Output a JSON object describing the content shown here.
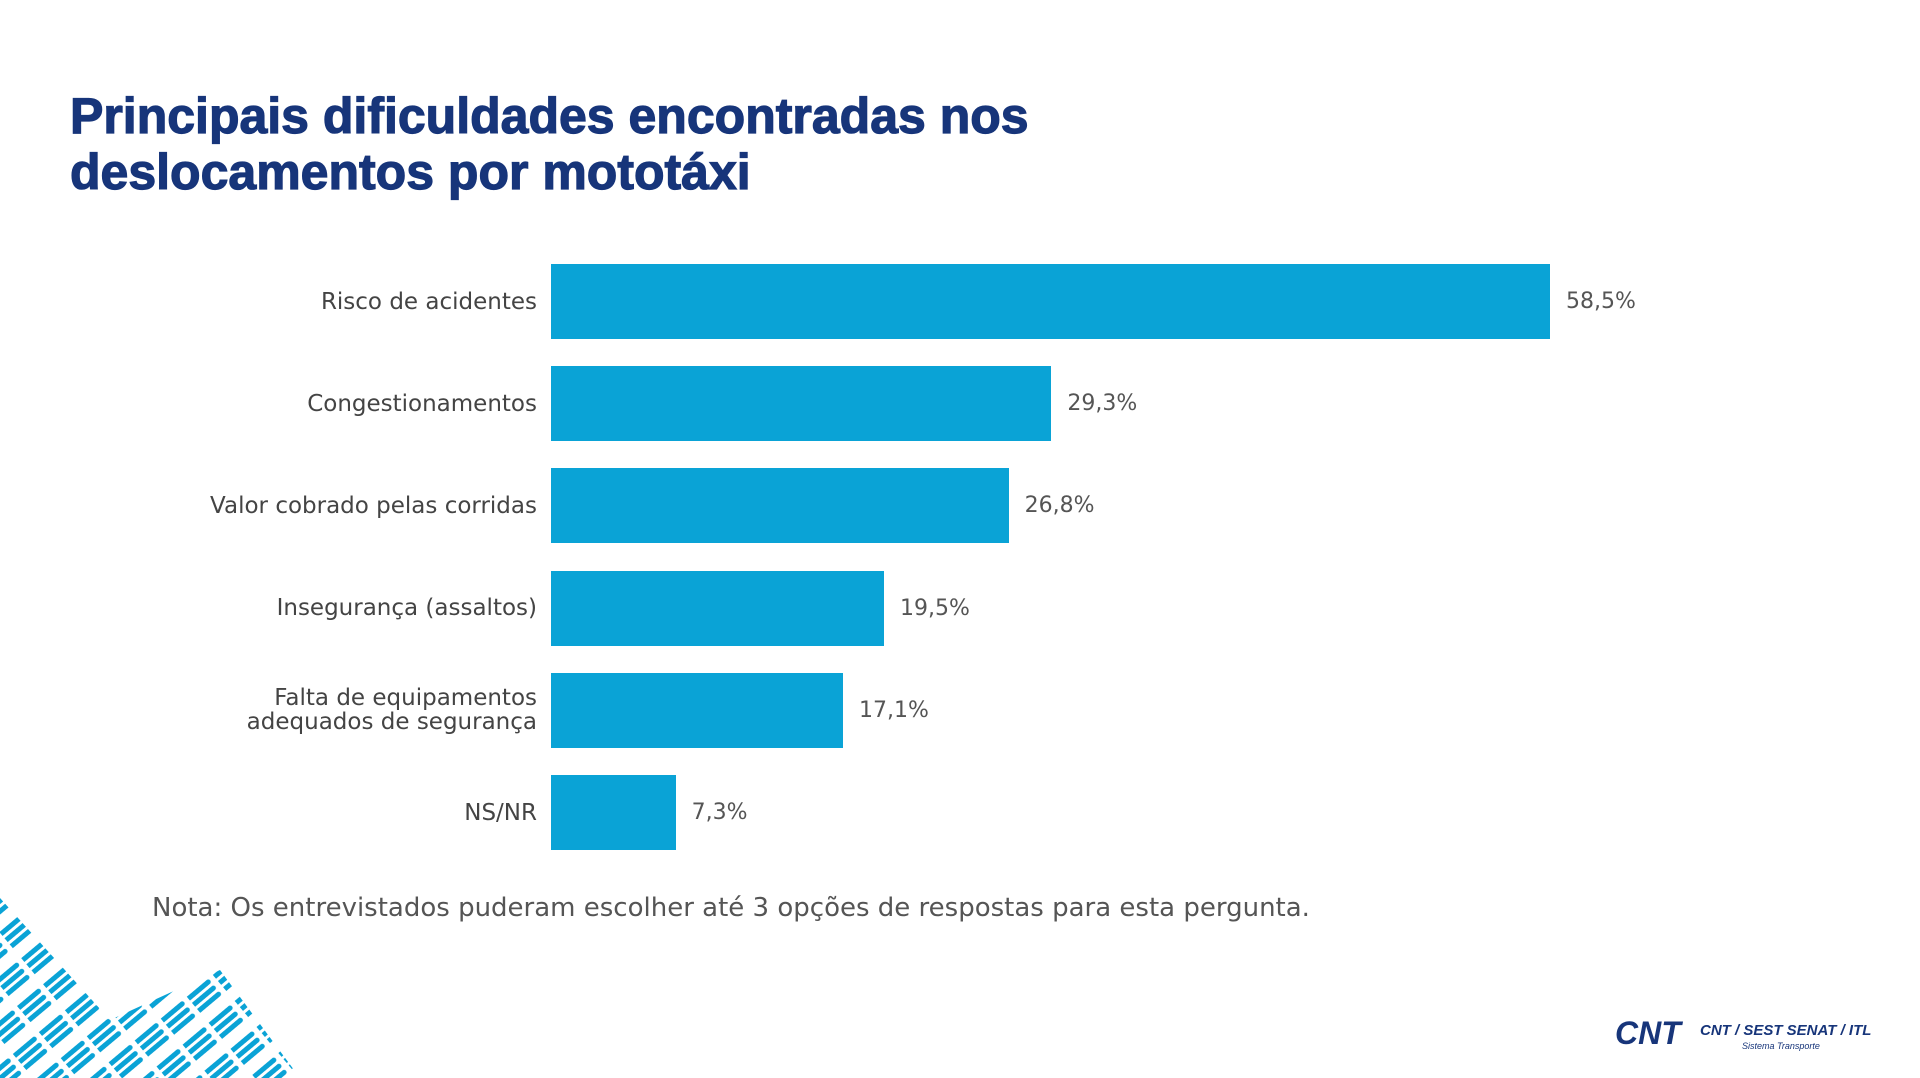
{
  "chart_data": {
    "type": "hbar",
    "title": "Principais dificuldades encontradas nos deslocamentos por mototáxi",
    "categories": [
      "Risco de acidentes",
      "Congestionamentos",
      "Valor cobrado pelas corridas",
      "Insegurança (assaltos)",
      "Falta de equipamentos adequados de segurança",
      "NS/NR"
    ],
    "values": [
      58.5,
      29.3,
      26.8,
      19.5,
      17.1,
      7.3
    ],
    "value_labels": [
      "58,5%",
      "29,3%",
      "26,8%",
      "19,5%",
      "17,1%",
      "7,3%"
    ],
    "color": "#0aa3d6",
    "note": "Nota: Os entrevistados puderam escolher até 3 opções de respostas para esta pergunta."
  },
  "logo": {
    "mark": "CNT",
    "text": "CNT / SEST SENAT / ITL",
    "tagline": "Sistema Transporte"
  }
}
